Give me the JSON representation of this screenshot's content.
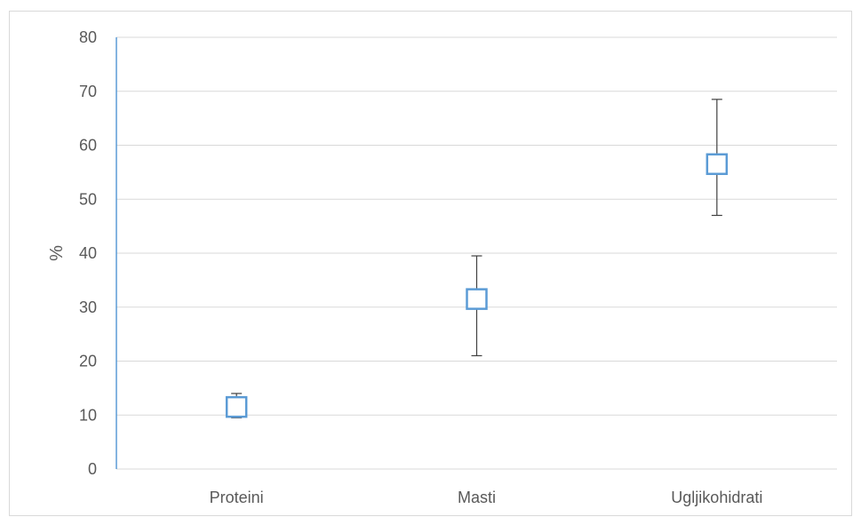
{
  "chart_data": {
    "type": "scatter",
    "title": "",
    "xlabel": "",
    "ylabel": "%",
    "ylim": [
      0,
      80
    ],
    "yticks": [
      0,
      10,
      20,
      30,
      40,
      50,
      60,
      70,
      80
    ],
    "grid": true,
    "legend": "none",
    "categories": [
      "Proteini",
      "Masti",
      "Ugljikohidrati"
    ],
    "series": [
      {
        "values": [
          11.5,
          31.5,
          56.5
        ],
        "error_low": [
          9.5,
          21,
          47
        ],
        "error_high": [
          14,
          39.5,
          68.5
        ]
      }
    ],
    "colors": {
      "marker": "#5b9bd5",
      "errorbar": "#404040",
      "grid": "#d9d9d9",
      "axis": "#5b9bd5",
      "text": "#595959"
    }
  }
}
